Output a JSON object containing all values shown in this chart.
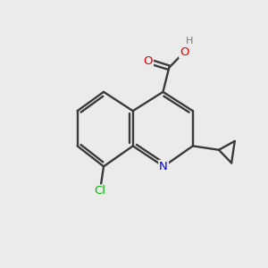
{
  "background_color": "#ebebeb",
  "bond_color": "#3a3a3a",
  "atom_colors": {
    "O": "#e00000",
    "N": "#0000ee",
    "Cl": "#00bb00",
    "H": "#7a7a7a",
    "C": "#3a3a3a"
  },
  "figsize": [
    3.0,
    3.0
  ],
  "dpi": 100
}
